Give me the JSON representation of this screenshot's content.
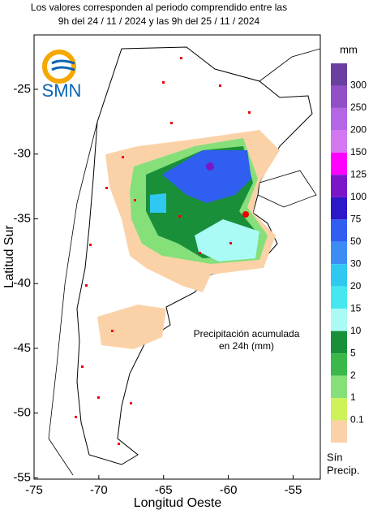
{
  "chart_data": {
    "type": "map",
    "title": [
      "Los valores corresponden al periodo comprendido entre las",
      "9h del 24 / 11 / 2024  y las 9h del 25 / 11 / 2024"
    ],
    "xlabel": "Longitud Oeste",
    "ylabel": "Latitud Sur",
    "xlim": [
      -75,
      -52.9
    ],
    "ylim": [
      -55.1,
      -20.8
    ],
    "xticks": [
      -75,
      -70,
      -65,
      -60,
      -55
    ],
    "yticks": [
      -25,
      -30,
      -35,
      -40,
      -45,
      -50,
      -55
    ],
    "annotation": [
      "Precipitación acumulada",
      "en 24h (mm)"
    ],
    "logo": "SMN",
    "colorbar": {
      "unit": "mm",
      "levels": [
        300,
        250,
        200,
        150,
        125,
        100,
        75,
        50,
        30,
        20,
        15,
        10,
        5,
        2,
        1,
        0.1
      ],
      "colors": [
        "#6b3fa0",
        "#9150c8",
        "#b466e6",
        "#d277f0",
        "#ff00ff",
        "#7a16c8",
        "#2d17c8",
        "#2f5ef0",
        "#3c8cf6",
        "#2ec8f0",
        "#46e8f0",
        "#aafaf6",
        "#1a8f3a",
        "#3ab84a",
        "#86e07a",
        "#cdf25a",
        "#fbd2a8"
      ],
      "no_precip_label": [
        "Sín",
        "Precip."
      ]
    }
  }
}
